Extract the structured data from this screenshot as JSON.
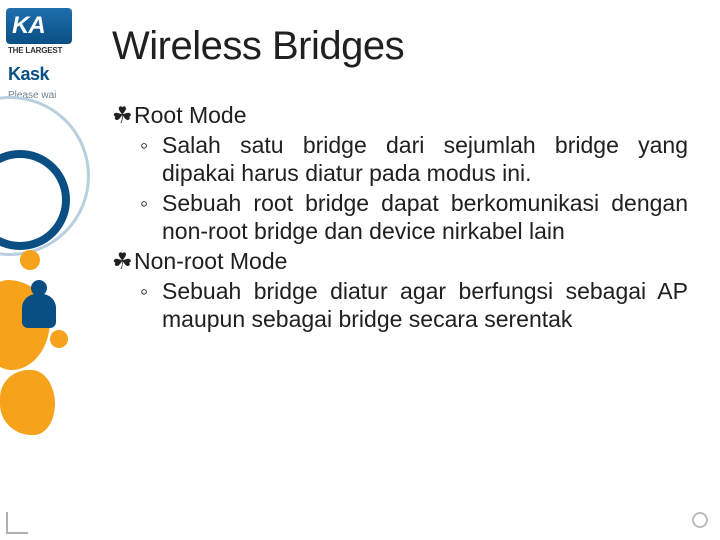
{
  "background": {
    "logo_top_text": "KA",
    "largest_text": "THE LARGEST",
    "logo_mid_text": "Kask",
    "please_wait_text": "Please wai",
    "accent_blue": "#0a4f84",
    "accent_orange": "#f6a21b",
    "ring_light": "#b7cfdf"
  },
  "slide": {
    "title": "Wireless Bridges",
    "title_fontsize": 40,
    "body_fontsize": 23,
    "text_color": "#202020",
    "bg_color": "#ffffff",
    "bullet_l1_glyph": "☘",
    "bullet_l2_glyph": "◦",
    "items": [
      {
        "label": "Root Mode",
        "subs": [
          "Salah satu bridge dari sejumlah bridge yang dipakai harus diatur pada modus ini.",
          "Sebuah root bridge dapat berkomunikasi dengan non-root bridge dan device nirkabel lain"
        ]
      },
      {
        "label": "Non-root Mode",
        "subs": [
          "Sebuah bridge diatur agar berfungsi sebagai AP maupun sebagai bridge secara serentak"
        ]
      }
    ]
  }
}
